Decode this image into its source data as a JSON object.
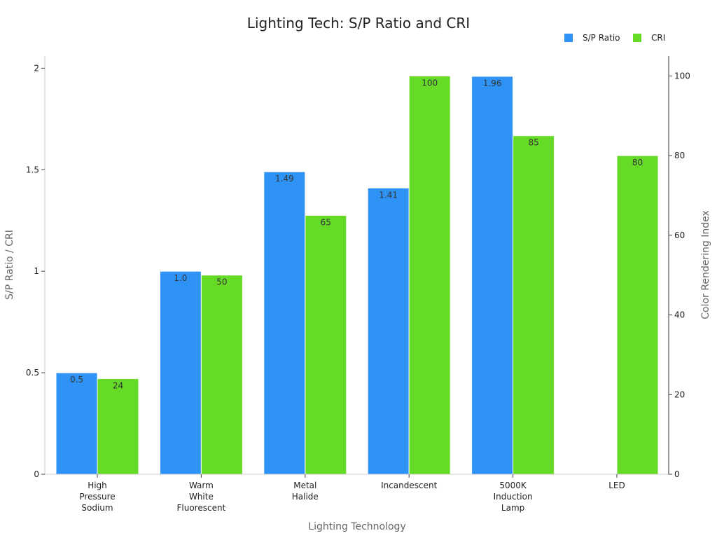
{
  "chart_data": {
    "type": "bar",
    "title": "Lighting Tech: S/P Ratio and CRI",
    "xlabel": "Lighting Technology",
    "ylabel": "S/P Ratio / CRI",
    "y2label": "Color Rendering Index",
    "categories": [
      [
        "High",
        "Pressure",
        "Sodium"
      ],
      [
        "Warm",
        "White",
        "Fluorescent"
      ],
      [
        "Metal",
        "Halide"
      ],
      [
        "Incandescent"
      ],
      [
        "5000K",
        "Induction",
        "Lamp"
      ],
      [
        "LED"
      ]
    ],
    "legend_position": "top-right",
    "series": [
      {
        "name": "S/P Ratio",
        "axis": "left",
        "color": "#2f93f6",
        "values": [
          0.5,
          1.0,
          1.49,
          1.41,
          1.96,
          null
        ],
        "labels": [
          "0.5",
          "1.0",
          "1.49",
          "1.41",
          "1.96",
          ""
        ]
      },
      {
        "name": "CRI",
        "axis": "right",
        "color": "#66db27",
        "values": [
          24,
          50,
          65,
          100,
          85,
          80
        ],
        "labels": [
          "24",
          "50",
          "65",
          "100",
          "85",
          "80"
        ]
      }
    ],
    "ylim": [
      0,
      2.06
    ],
    "yticks": [
      0,
      0.5,
      1,
      1.5,
      2
    ],
    "ytick_labels": [
      "0",
      "0.5",
      "1",
      "1.5",
      "2"
    ],
    "y2lim": [
      0,
      105
    ],
    "y2ticks": [
      0,
      20,
      40,
      60,
      80,
      100
    ],
    "y2tick_labels": [
      "0",
      "20",
      "40",
      "60",
      "80",
      "100"
    ],
    "grid": false
  }
}
